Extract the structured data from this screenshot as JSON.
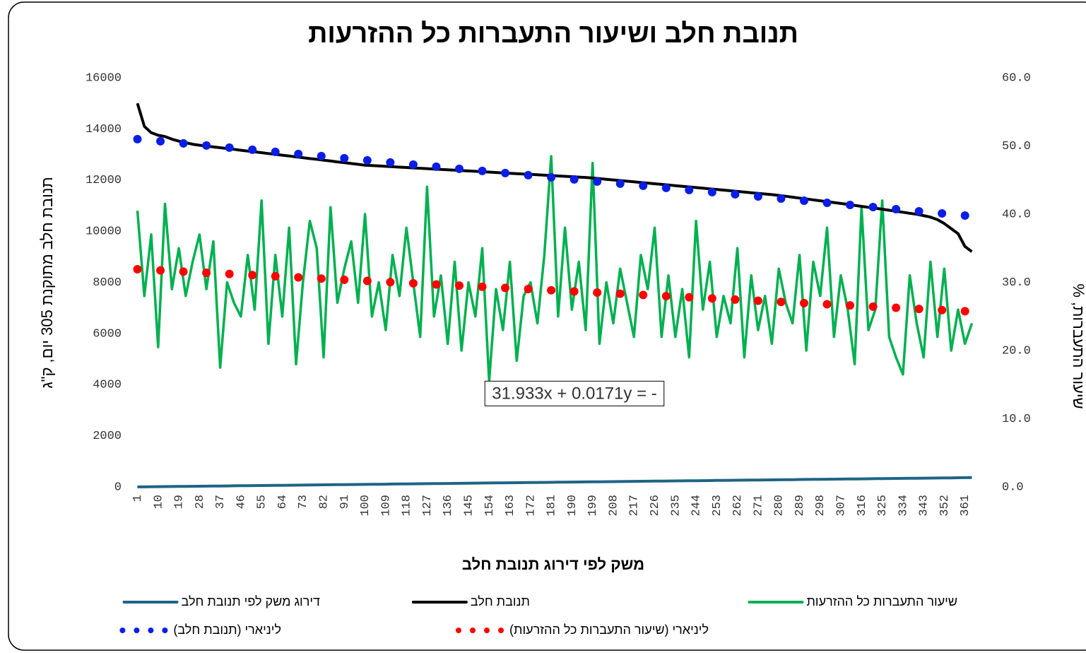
{
  "chart_data": {
    "type": "line",
    "title": "תנובת חלב ושיעור התעברות כל ההזרעות",
    "x_label": "משק לפי דירוג תנובת חלב",
    "y_label": "תנובת חלב מתוקנת 305 יום, ק\"ג",
    "y2_label": "שיעור התעברות, %",
    "annotation": "31.933x + 0.0171y = -",
    "xlim": [
      -1,
      370
    ],
    "xticks": [
      1,
      10,
      19,
      28,
      37,
      46,
      55,
      64,
      73,
      82,
      91,
      100,
      109,
      118,
      127,
      136,
      145,
      154,
      163,
      172,
      181,
      190,
      199,
      208,
      217,
      226,
      235,
      244,
      253,
      262,
      271,
      280,
      289,
      298,
      307,
      316,
      325,
      334,
      343,
      352,
      361
    ],
    "ylim": [
      0,
      16000
    ],
    "yticks": [
      0,
      2000,
      4000,
      6000,
      8000,
      10000,
      12000,
      14000,
      16000
    ],
    "y2lim": [
      0,
      60
    ],
    "y2ticks": [
      {
        "value": 0,
        "label": "0.0"
      },
      {
        "value": 10,
        "label": "10.0"
      },
      {
        "value": 20,
        "label": "20.0"
      },
      {
        "value": 30,
        "label": "30.0"
      },
      {
        "value": 40,
        "label": "40.0"
      },
      {
        "value": 50,
        "label": "50.0"
      },
      {
        "value": 60,
        "label": "60.0"
      }
    ],
    "x": [
      1,
      4,
      7,
      10,
      13,
      16,
      19,
      22,
      25,
      28,
      31,
      34,
      37,
      40,
      43,
      46,
      49,
      52,
      55,
      58,
      61,
      64,
      67,
      70,
      73,
      76,
      79,
      82,
      85,
      88,
      91,
      94,
      97,
      100,
      103,
      106,
      109,
      112,
      115,
      118,
      121,
      124,
      127,
      130,
      133,
      136,
      139,
      142,
      145,
      148,
      151,
      154,
      157,
      160,
      163,
      166,
      169,
      172,
      175,
      178,
      181,
      184,
      187,
      190,
      193,
      196,
      199,
      202,
      205,
      208,
      211,
      214,
      217,
      220,
      223,
      226,
      229,
      232,
      235,
      238,
      241,
      244,
      247,
      250,
      253,
      256,
      259,
      262,
      265,
      268,
      271,
      274,
      277,
      280,
      283,
      286,
      289,
      292,
      295,
      298,
      301,
      304,
      307,
      310,
      313,
      316,
      319,
      322,
      325,
      328,
      331,
      334,
      337,
      340,
      343,
      346,
      349,
      352,
      355,
      358,
      361,
      364
    ],
    "series": [
      {
        "name": "דירוג משק לפי תנובת חלב",
        "color": "#1f6485",
        "values": [
          1,
          4,
          7,
          10,
          13,
          16,
          19,
          22,
          25,
          28,
          31,
          34,
          37,
          40,
          43,
          46,
          49,
          52,
          55,
          58,
          61,
          64,
          67,
          70,
          73,
          76,
          79,
          82,
          85,
          88,
          91,
          94,
          97,
          100,
          103,
          106,
          109,
          112,
          115,
          118,
          121,
          124,
          127,
          130,
          133,
          136,
          139,
          142,
          145,
          148,
          151,
          154,
          157,
          160,
          163,
          166,
          169,
          172,
          175,
          178,
          181,
          184,
          187,
          190,
          193,
          196,
          199,
          202,
          205,
          208,
          211,
          214,
          217,
          220,
          223,
          226,
          229,
          232,
          235,
          238,
          241,
          244,
          247,
          250,
          253,
          256,
          259,
          262,
          265,
          268,
          271,
          274,
          277,
          280,
          283,
          286,
          289,
          292,
          295,
          298,
          301,
          304,
          307,
          310,
          313,
          316,
          319,
          322,
          325,
          328,
          331,
          334,
          337,
          340,
          343,
          346,
          349,
          352,
          355,
          358,
          361,
          364
        ]
      },
      {
        "name": "תנובת חלב",
        "color": "#000000",
        "values": [
          15000,
          14100,
          13850,
          13750,
          13700,
          13600,
          13520,
          13460,
          13400,
          13360,
          13330,
          13295,
          13265,
          13230,
          13200,
          13165,
          13135,
          13100,
          13070,
          13035,
          13005,
          12970,
          12940,
          12905,
          12875,
          12840,
          12810,
          12775,
          12745,
          12710,
          12680,
          12645,
          12615,
          12580,
          12565,
          12550,
          12535,
          12520,
          12505,
          12490,
          12475,
          12460,
          12445,
          12430,
          12415,
          12400,
          12385,
          12370,
          12355,
          12340,
          12325,
          12310,
          12295,
          12280,
          12265,
          12250,
          12235,
          12220,
          12205,
          12190,
          12175,
          12160,
          12145,
          12130,
          12115,
          12100,
          12080,
          12055,
          12030,
          12005,
          11980,
          11955,
          11930,
          11905,
          11880,
          11855,
          11830,
          11805,
          11780,
          11755,
          11730,
          11705,
          11680,
          11655,
          11630,
          11605,
          11580,
          11555,
          11530,
          11505,
          11480,
          11455,
          11430,
          11400,
          11365,
          11330,
          11295,
          11260,
          11225,
          11190,
          11155,
          11120,
          11085,
          11050,
          11010,
          10970,
          10935,
          10900,
          10860,
          10820,
          10780,
          10740,
          10700,
          10660,
          10610,
          10550,
          10450,
          10300,
          10100,
          9900,
          9400,
          9200
        ]
      },
      {
        "name": "שיעור התעברות כל ההזרעות",
        "color": "#00b050",
        "axis": "y2",
        "values": [
          40.5,
          28,
          37,
          20.5,
          41.5,
          29,
          35,
          28,
          33,
          37,
          29,
          36,
          17.5,
          30,
          27,
          25,
          34,
          26,
          42,
          21,
          34,
          25,
          38,
          18,
          30,
          39,
          35,
          19,
          41,
          27,
          32,
          36,
          27,
          40,
          25,
          30,
          23,
          34,
          28,
          38,
          30,
          22,
          44,
          25,
          31,
          21,
          33,
          20,
          30,
          25,
          35,
          15.5,
          29,
          23,
          33,
          18.5,
          28,
          30,
          24,
          34,
          48.5,
          25,
          38,
          26,
          33,
          23,
          47.5,
          21,
          30,
          24,
          32,
          27,
          22,
          34,
          29,
          38,
          22,
          31,
          22,
          29,
          19,
          39,
          26,
          33,
          22,
          28,
          24,
          35,
          19,
          31,
          23,
          28,
          21,
          32,
          27,
          24,
          34,
          20,
          33,
          28,
          38,
          22,
          31,
          26,
          18,
          41,
          23,
          26,
          42,
          22,
          19,
          16.5,
          31,
          24,
          19,
          33,
          22,
          32,
          20,
          26,
          21,
          24
        ]
      },
      {
        "name": "ליניארי (תנובת חלב)",
        "color": "#0a1ee6",
        "marker": true,
        "x": [
          1,
          11,
          21,
          31,
          41,
          51,
          61,
          71,
          81,
          91,
          101,
          111,
          121,
          131,
          141,
          151,
          161,
          171,
          181,
          191,
          201,
          211,
          221,
          231,
          241,
          251,
          261,
          271,
          281,
          291,
          301,
          311,
          321,
          331,
          341,
          351,
          361
        ],
        "values": [
          13600,
          13517,
          13434,
          13351,
          13268,
          13185,
          13102,
          13019,
          12936,
          12853,
          12770,
          12687,
          12604,
          12521,
          12438,
          12355,
          12272,
          12189,
          12106,
          12023,
          11940,
          11857,
          11774,
          11691,
          11608,
          11525,
          11442,
          11359,
          11276,
          11193,
          11110,
          11027,
          10944,
          10861,
          10778,
          10695,
          10612
        ]
      },
      {
        "name": "ליניארי (שיעור התעברות כל ההזרעות)",
        "color": "#ff0000",
        "marker": true,
        "axis": "y2",
        "x": [
          1,
          11,
          21,
          31,
          41,
          51,
          61,
          71,
          81,
          91,
          101,
          111,
          121,
          131,
          141,
          151,
          161,
          171,
          181,
          191,
          201,
          211,
          221,
          231,
          241,
          251,
          261,
          271,
          281,
          291,
          301,
          311,
          321,
          331,
          341,
          351,
          361
        ],
        "values": [
          31.92,
          31.75,
          31.57,
          31.4,
          31.23,
          31.06,
          30.89,
          30.72,
          30.55,
          30.38,
          30.21,
          30.03,
          29.86,
          29.69,
          29.52,
          29.35,
          29.18,
          29.01,
          28.84,
          28.67,
          28.5,
          28.33,
          28.15,
          27.98,
          27.81,
          27.64,
          27.47,
          27.3,
          27.13,
          26.96,
          26.79,
          26.62,
          26.44,
          26.27,
          26.1,
          25.93,
          25.76
        ]
      }
    ]
  }
}
